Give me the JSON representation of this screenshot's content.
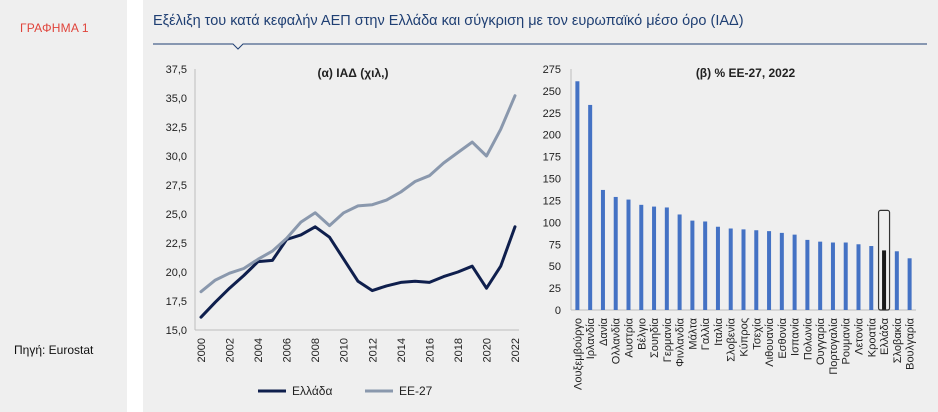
{
  "figure_label": "ΓΡΑΦΗΜΑ 1",
  "title": "Εξέλιξη του κατά κεφαλήν ΑΕΠ στην Ελλάδα και σύγκριση με τον ευρωπαϊκό μέσο όρο (ΙΑΔ)",
  "source": "Πηγή: Eurostat",
  "colors": {
    "greece": "#0f1f4d",
    "eu": "#8a98ad",
    "bar": "#4472c4",
    "title": "#1f3f73",
    "label": "#e0433a"
  },
  "chart_data": [
    {
      "type": "line",
      "title": "(α) ΙΑΔ (χιλ,)",
      "xlabel": "",
      "ylabel": "",
      "ylim": [
        15.0,
        37.5
      ],
      "yticks": [
        "15,0",
        "17,5",
        "20,0",
        "22,5",
        "25,0",
        "27,5",
        "30,0",
        "32,5",
        "35,0",
        "37,5"
      ],
      "xticks": [
        "2000",
        "2002",
        "2004",
        "2006",
        "2008",
        "2010",
        "2012",
        "2014",
        "2016",
        "2018",
        "2020",
        "2022"
      ],
      "x": [
        2000,
        2001,
        2002,
        2003,
        2004,
        2005,
        2006,
        2007,
        2008,
        2009,
        2010,
        2011,
        2012,
        2013,
        2014,
        2015,
        2016,
        2017,
        2018,
        2019,
        2020,
        2021,
        2022
      ],
      "series": [
        {
          "name": "Ελλάδα",
          "values": [
            16.1,
            17.4,
            18.6,
            19.7,
            20.9,
            21.0,
            22.8,
            23.2,
            23.9,
            23.0,
            21.1,
            19.2,
            18.4,
            18.8,
            19.1,
            19.2,
            19.1,
            19.6,
            20.0,
            20.5,
            18.6,
            20.5,
            23.9
          ]
        },
        {
          "name": "ΕΕ-27",
          "values": [
            18.3,
            19.3,
            19.9,
            20.3,
            21.1,
            21.8,
            22.9,
            24.3,
            25.1,
            24.0,
            25.1,
            25.7,
            25.8,
            26.2,
            26.9,
            27.8,
            28.3,
            29.4,
            30.3,
            31.2,
            30.0,
            32.3,
            35.2
          ]
        }
      ],
      "legend": "bottom"
    },
    {
      "type": "bar",
      "title": "(β) % ΕΕ-27, 2022",
      "ylim": [
        0,
        275
      ],
      "yticks": [
        "0",
        "25",
        "50",
        "75",
        "100",
        "125",
        "150",
        "175",
        "200",
        "225",
        "250",
        "275"
      ],
      "categories": [
        "Λουξεμβούργο",
        "Ιρλανδία",
        "Δανία",
        "Ολλανδία",
        "Αυστρία",
        "Βέλγιο",
        "Σουηδία",
        "Γερμανία",
        "Φινλανδία",
        "Μάλτα",
        "Γαλλία",
        "Ιταλία",
        "Σλοβενία",
        "Κύπρος",
        "Τσεχία",
        "Λιθουανία",
        "Εσθονία",
        "Ισπανία",
        "Πολωνία",
        "Ουγγαρία",
        "Πορτογαλία",
        "Ρουμανία",
        "Λετονία",
        "Κροατία",
        "Ελλάδα",
        "Σλοβακία",
        "Βουλγαρία"
      ],
      "values": [
        261,
        234,
        137,
        129,
        126,
        120,
        118,
        117,
        109,
        102,
        101,
        95,
        93,
        92,
        91,
        90,
        88,
        86,
        80,
        78,
        77,
        77,
        75,
        73,
        68,
        67,
        59
      ],
      "highlight": "Ελλάδα"
    }
  ]
}
